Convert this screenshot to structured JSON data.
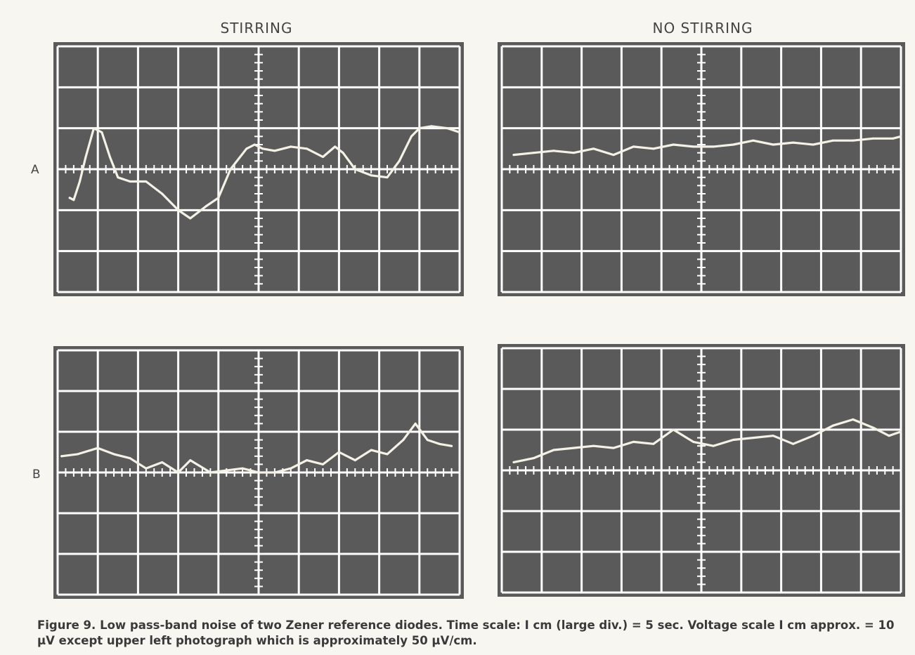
{
  "columns": {
    "left": "STIRRING",
    "right": "NO STIRRING"
  },
  "rows": {
    "a": "A",
    "b": "B"
  },
  "caption": {
    "label": "Figure 9.",
    "text": "Low pass-band noise of two Zener reference diodes. Time scale: I cm (large div.) = 5 sec. Voltage scale I cm approx. = 10 µV except upper left photograph which is approximately 50 µV/cm."
  },
  "colors": {
    "screen": "#5a5a5a",
    "grid": "#ffffff",
    "trace": "#f4f1e6"
  },
  "chart_data": [
    {
      "type": "line",
      "panel": "A-stirring",
      "xlim": [
        0,
        10
      ],
      "ylim": [
        -3,
        3
      ],
      "grid": true,
      "x": [
        0.3,
        0.4,
        0.55,
        0.7,
        0.9,
        1.1,
        1.3,
        1.5,
        1.8,
        2.2,
        2.6,
        3.0,
        3.3,
        3.7,
        4.0,
        4.3,
        4.7,
        4.9,
        5.1,
        5.4,
        5.8,
        6.2,
        6.6,
        6.9,
        7.1,
        7.4,
        7.8,
        8.2,
        8.5,
        8.8,
        9.0,
        9.3,
        9.7,
        10.0
      ],
      "y": [
        -0.7,
        -0.75,
        -0.3,
        0.3,
        1.0,
        0.9,
        0.3,
        -0.2,
        -0.3,
        -0.3,
        -0.6,
        -1.0,
        -1.2,
        -0.9,
        -0.7,
        0.0,
        0.5,
        0.6,
        0.5,
        0.45,
        0.55,
        0.5,
        0.3,
        0.55,
        0.4,
        0.0,
        -0.15,
        -0.2,
        0.2,
        0.8,
        1.0,
        1.05,
        1.0,
        0.9
      ]
    },
    {
      "type": "line",
      "panel": "A-no-stirring",
      "xlim": [
        0,
        10
      ],
      "ylim": [
        -3,
        3
      ],
      "grid": true,
      "x": [
        0.3,
        0.8,
        1.3,
        1.8,
        2.3,
        2.8,
        3.3,
        3.8,
        4.3,
        4.8,
        5.3,
        5.8,
        6.3,
        6.8,
        7.3,
        7.8,
        8.3,
        8.8,
        9.3,
        9.8,
        10.0
      ],
      "y": [
        0.35,
        0.4,
        0.45,
        0.4,
        0.5,
        0.35,
        0.55,
        0.5,
        0.6,
        0.55,
        0.55,
        0.6,
        0.7,
        0.6,
        0.65,
        0.6,
        0.7,
        0.7,
        0.75,
        0.75,
        0.8
      ]
    },
    {
      "type": "line",
      "panel": "B-stirring",
      "xlim": [
        0,
        10
      ],
      "ylim": [
        -3,
        3
      ],
      "grid": true,
      "x": [
        0.1,
        0.5,
        1.0,
        1.4,
        1.8,
        2.2,
        2.6,
        3.0,
        3.3,
        3.8,
        4.2,
        4.6,
        5.0,
        5.4,
        5.8,
        6.2,
        6.6,
        7.0,
        7.4,
        7.8,
        8.2,
        8.6,
        8.9,
        9.2,
        9.5,
        9.8
      ],
      "y": [
        0.4,
        0.45,
        0.6,
        0.45,
        0.35,
        0.1,
        0.25,
        0.0,
        0.3,
        0.0,
        0.05,
        0.1,
        0.0,
        0.0,
        0.1,
        0.3,
        0.2,
        0.5,
        0.3,
        0.55,
        0.45,
        0.8,
        1.2,
        0.8,
        0.7,
        0.65
      ]
    },
    {
      "type": "line",
      "panel": "B-no-stirring",
      "xlim": [
        0,
        10
      ],
      "ylim": [
        -3,
        3
      ],
      "grid": true,
      "x": [
        0.3,
        0.8,
        1.3,
        1.8,
        2.3,
        2.8,
        3.3,
        3.8,
        4.3,
        4.8,
        5.3,
        5.8,
        6.3,
        6.8,
        7.3,
        7.8,
        8.3,
        8.8,
        9.3,
        9.7,
        10.0
      ],
      "y": [
        0.2,
        0.3,
        0.5,
        0.55,
        0.6,
        0.55,
        0.7,
        0.65,
        1.0,
        0.7,
        0.6,
        0.75,
        0.8,
        0.85,
        0.65,
        0.85,
        1.1,
        1.25,
        1.05,
        0.85,
        0.95
      ]
    }
  ]
}
